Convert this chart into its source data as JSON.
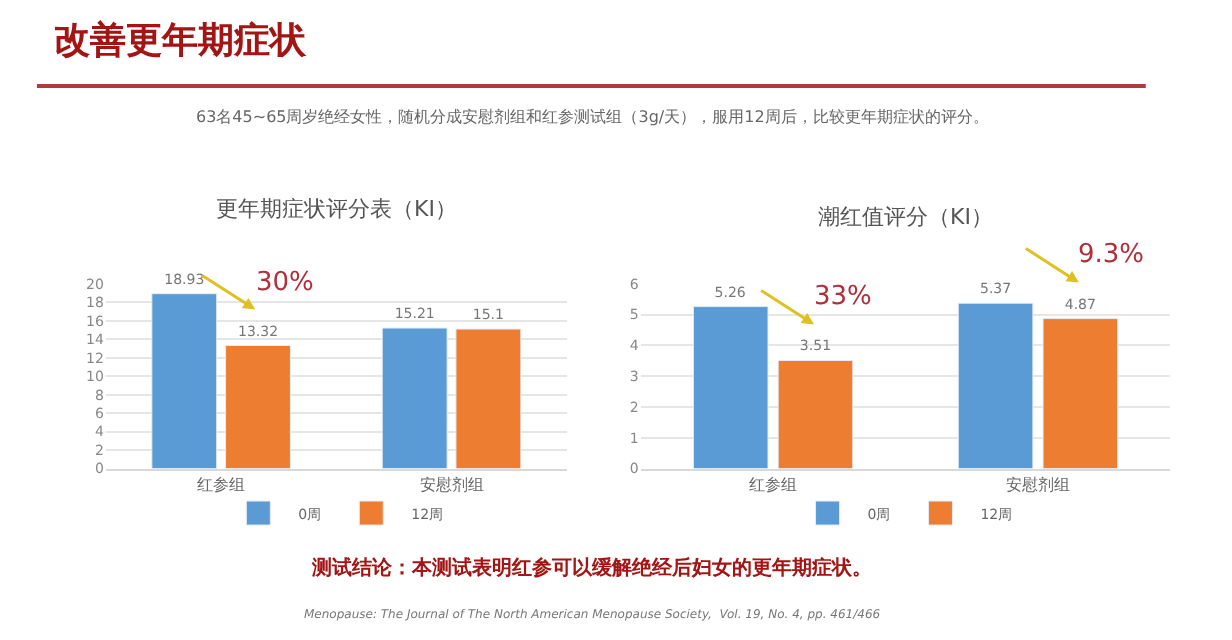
{
  "chart_data": [
    {
      "type": "other",
      "title": "改善更年期症状",
      "subtitle": "63名45~65周岁绝经女性，随机分成安慰剂组和红参测试组（3g/天），服用12周后，比较更年期症状的评分。",
      "annotations": [
        "测试结论：本测试表明红参可以缓解绝经后妇女的更年期症状。",
        "Menopause: The Journal of The North American Menopause Society,  Vol. 19, No. 4, pp. 461/466"
      ]
    },
    {
      "type": "bar",
      "title": "更年期症状评分表（KI）",
      "categories": [
        "红参组",
        "安慰剂组"
      ],
      "series": [
        {
          "name": "0周",
          "color": "#5b9bd5",
          "values": [
            18.93,
            15.21
          ]
        },
        {
          "name": "12周",
          "color": "#ed7d31",
          "values": [
            13.32,
            15.1
          ]
        }
      ],
      "ylim": [
        0,
        20
      ],
      "yticks": [
        0,
        2,
        4,
        6,
        8,
        10,
        12,
        14,
        16,
        18,
        20
      ],
      "grid": "y",
      "legend": "bottom",
      "data_labels": true,
      "annotations": [
        {
          "text": "30%",
          "x": "红参组",
          "y": 13.32
        }
      ]
    },
    {
      "type": "bar",
      "title": "潮红值评分（KI）",
      "categories": [
        "红参组",
        "安慰剂组"
      ],
      "series": [
        {
          "name": "0周",
          "color": "#5b9bd5",
          "values": [
            5.26,
            5.37
          ]
        },
        {
          "name": "12周",
          "color": "#ed7d31",
          "values": [
            3.51,
            4.87
          ]
        }
      ],
      "ylim": [
        0,
        6
      ],
      "yticks": [
        0,
        1,
        2,
        3,
        4,
        5,
        6
      ],
      "grid": "y",
      "legend": "bottom",
      "data_labels": true,
      "annotations": [
        {
          "text": "33%",
          "x": "红参组",
          "y": 3.51
        },
        {
          "text": "9.3%",
          "x": "安慰剂组",
          "y": 4.87
        }
      ]
    }
  ]
}
